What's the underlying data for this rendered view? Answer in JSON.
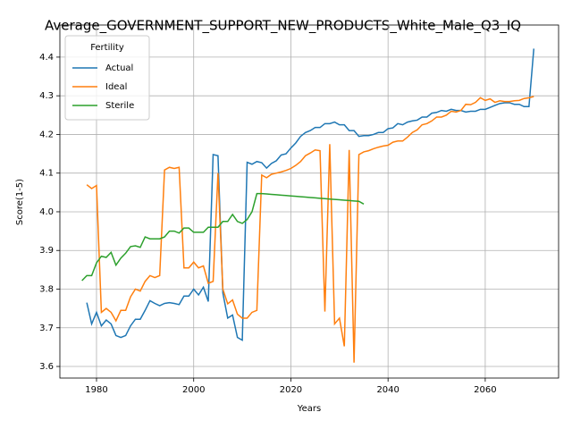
{
  "chart_data": {
    "type": "line",
    "title": "Average_GOVERNMENT_SUPPORT_NEW_PRODUCTS_White_Male_Q3_IQ",
    "xlabel": "Years",
    "ylabel": "Score(1-5)",
    "legend_title": "Fertility",
    "legend": "upper left",
    "grid": true,
    "x": [
      1977,
      1978,
      1979,
      1980,
      1981,
      1982,
      1983,
      1984,
      1985,
      1986,
      1987,
      1988,
      1989,
      1990,
      1991,
      1992,
      1993,
      1994,
      1995,
      1996,
      1997,
      1998,
      1999,
      2000,
      2001,
      2002,
      2003,
      2004,
      2005,
      2006,
      2007,
      2008,
      2009,
      2010,
      2011,
      2012,
      2013,
      2014,
      2015,
      2016,
      2017,
      2018,
      2019,
      2020,
      2021,
      2022,
      2023,
      2024,
      2025,
      2026,
      2027,
      2028,
      2029,
      2030,
      2031,
      2032,
      2033,
      2034,
      2035,
      2036,
      2037,
      2038,
      2039,
      2040,
      2041,
      2042,
      2043,
      2044,
      2045,
      2046,
      2047,
      2048,
      2049,
      2050,
      2051,
      2052,
      2053,
      2054,
      2055,
      2056,
      2057,
      2058,
      2059,
      2060,
      2061,
      2062,
      2063,
      2064,
      2065,
      2066,
      2067,
      2068,
      2069,
      2070
    ],
    "series": [
      {
        "name": "Actual",
        "color": "#1f77b4",
        "values": [
          null,
          3.765,
          3.71,
          3.74,
          3.705,
          3.72,
          3.71,
          3.68,
          3.675,
          3.68,
          3.705,
          3.722,
          3.722,
          3.745,
          3.77,
          3.763,
          3.757,
          3.763,
          3.765,
          3.763,
          3.76,
          3.782,
          3.782,
          3.8,
          3.785,
          3.805,
          3.768,
          4.148,
          4.145,
          3.79,
          3.725,
          3.733,
          3.675,
          3.668,
          4.128,
          4.123,
          4.13,
          4.127,
          4.113,
          4.125,
          4.132,
          4.147,
          4.15,
          4.165,
          4.178,
          4.195,
          4.205,
          4.21,
          4.218,
          4.218,
          4.228,
          4.228,
          4.232,
          4.225,
          4.225,
          4.21,
          4.21,
          4.195,
          4.197,
          4.197,
          4.2,
          4.205,
          4.205,
          4.215,
          4.217,
          4.228,
          4.225,
          4.232,
          4.235,
          4.237,
          4.245,
          4.245,
          4.255,
          4.257,
          4.262,
          4.26,
          4.265,
          4.262,
          4.262,
          4.258,
          4.26,
          4.26,
          4.265,
          4.265,
          4.27,
          4.275,
          4.28,
          4.282,
          4.282,
          4.278,
          4.278,
          4.272,
          4.272,
          4.422
        ]
      },
      {
        "name": "Ideal",
        "color": "#ff7f0e",
        "values": [
          null,
          4.07,
          4.06,
          4.068,
          3.74,
          3.75,
          3.74,
          3.718,
          3.745,
          3.745,
          3.78,
          3.8,
          3.795,
          3.82,
          3.835,
          3.83,
          3.835,
          4.108,
          4.115,
          4.112,
          4.115,
          3.855,
          3.855,
          3.87,
          3.855,
          3.86,
          3.815,
          3.82,
          4.1,
          3.8,
          3.762,
          3.772,
          3.735,
          3.725,
          3.725,
          3.74,
          3.745,
          4.095,
          4.088,
          4.097,
          4.1,
          4.103,
          4.107,
          4.112,
          4.12,
          4.13,
          4.145,
          4.152,
          4.16,
          4.158,
          3.742,
          4.175,
          3.71,
          3.725,
          3.652,
          4.16,
          3.61,
          4.148,
          4.155,
          4.158,
          4.163,
          4.167,
          4.17,
          4.172,
          4.18,
          4.183,
          4.183,
          4.193,
          4.205,
          4.212,
          4.225,
          4.228,
          4.235,
          4.245,
          4.245,
          4.25,
          4.26,
          4.258,
          4.262,
          4.278,
          4.277,
          4.283,
          4.295,
          4.288,
          4.292,
          4.283,
          4.287,
          4.285,
          4.285,
          4.287,
          4.288,
          4.293,
          4.295,
          4.298
        ]
      },
      {
        "name": "Sterile",
        "color": "#2ca02c",
        "values": [
          3.822,
          3.835,
          3.835,
          3.868,
          3.885,
          3.882,
          3.895,
          3.862,
          3.88,
          3.893,
          3.91,
          3.912,
          3.908,
          3.935,
          3.93,
          3.93,
          3.93,
          3.935,
          3.95,
          3.95,
          3.945,
          3.958,
          3.958,
          3.947,
          3.947,
          3.947,
          3.96,
          3.96,
          3.96,
          3.975,
          3.975,
          3.993,
          3.975,
          3.97,
          3.98,
          4.0,
          4.047,
          4.047,
          4.046,
          4.045,
          4.044,
          4.043,
          4.042,
          4.041,
          4.04,
          4.039,
          4.038,
          4.037,
          4.036,
          4.035,
          4.034,
          4.033,
          4.032,
          4.031,
          4.03,
          4.029,
          4.028,
          4.027,
          4.02,
          null,
          null,
          null,
          null,
          null,
          null,
          null,
          null,
          null,
          null,
          null,
          null,
          null,
          null,
          null,
          null,
          null,
          null,
          null,
          null,
          null,
          null,
          null,
          null,
          null,
          null,
          null,
          null,
          null,
          null,
          null,
          null,
          null,
          null,
          null
        ]
      }
    ],
    "xlim": [
      1972.46,
      2075.1
    ],
    "xticks": [
      1980,
      2000,
      2020,
      2040,
      2060
    ],
    "ylim": [
      3.57,
      4.483
    ],
    "yticks": [
      3.6,
      3.7,
      3.8,
      3.9,
      {
        "value": 4,
        "label": "4.0"
      },
      4.1,
      4.2,
      4.3,
      4.4
    ]
  }
}
